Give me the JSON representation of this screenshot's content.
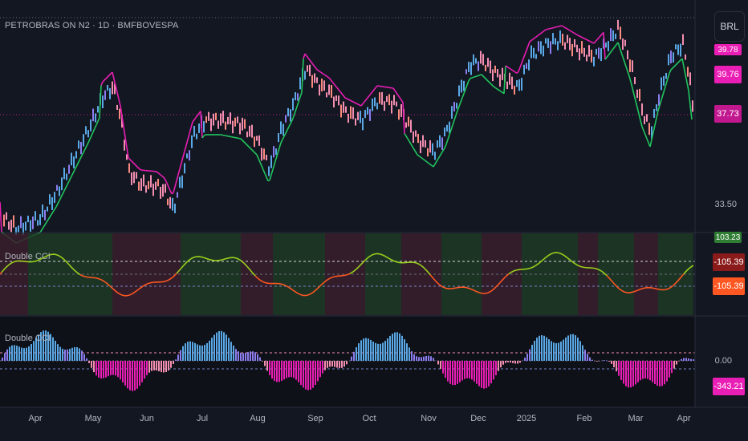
{
  "header": {
    "title": "PETROBRAS ON N2 · 1D · BMFBOVESPA",
    "currency": "BRL"
  },
  "price_scale": {
    "top_partial": "39.78",
    "tag_high": "39.76",
    "tag_low": "37.73",
    "label_33": "33.50"
  },
  "pane1": {
    "label": "Double CCI",
    "tag_top": "103.23",
    "tag_mid": "-105.39",
    "tag_low": "-105.39"
  },
  "pane2": {
    "label": "Double CCI",
    "label_zero": "0.00",
    "tag_low": "-343.21"
  },
  "x_axis": {
    "months": [
      "Apr",
      "May",
      "Jun",
      "Jul",
      "Aug",
      "Sep",
      "Oct",
      "Nov",
      "Dec",
      "2025",
      "Feb",
      "Mar",
      "Apr"
    ]
  },
  "colors": {
    "background": "#131722",
    "magenta": "#e91eb4",
    "green_line": "#22c55e",
    "blue_bar": "#5aa9e6",
    "pink_bar": "#f48fb1",
    "orange_tag": "#ff5722",
    "green_tag": "#2e7d32"
  }
}
